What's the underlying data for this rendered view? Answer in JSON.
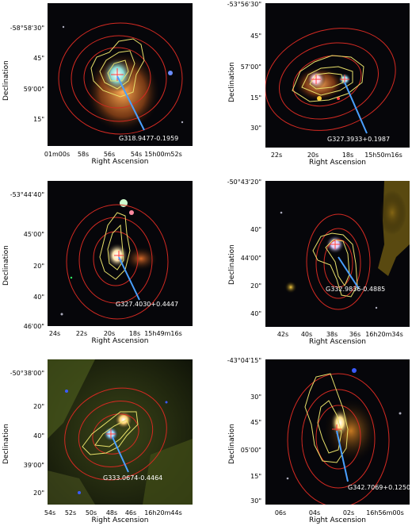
{
  "axis_labels": {
    "y": "Declination",
    "x": "Right Ascension"
  },
  "colors": {
    "contour_red": "#d42a22",
    "contour_yellow": "#e8e06a",
    "arrow": "#4aa0ff",
    "marker": "#ff3b3b"
  },
  "panels": [
    {
      "source": "G318.9477-0.1959",
      "yticks": [
        "-58°58'30\"",
        "45\"",
        "59'00\"",
        "15\""
      ],
      "xticks": [
        "01m00s",
        "58s",
        "56s",
        "54s",
        "15h00m52s"
      ]
    },
    {
      "source": "G327.3933+0.1987",
      "yticks": [
        "-53°56'30\"",
        "45\"",
        "57'00\"",
        "15\"",
        "30\""
      ],
      "xticks": [
        "22s",
        "20s",
        "18s",
        "15h50m16s"
      ]
    },
    {
      "source": "G327.4030+0.4447",
      "yticks": [
        "-53°44'40\"",
        "45'00\"",
        "20\"",
        "40\"",
        "46'00\""
      ],
      "xticks": [
        "24s",
        "22s",
        "20s",
        "18s",
        "15h49m16s"
      ]
    },
    {
      "source": "G332.9836-0.4885",
      "yticks": [
        "-50°43'20\"",
        "40\"",
        "44'00\"",
        "20\"",
        "40\""
      ],
      "xticks": [
        "42s",
        "40s",
        "38s",
        "36s",
        "16h20m34s"
      ]
    },
    {
      "source": "G333.0674-0.4464",
      "yticks": [
        "-50°38'00\"",
        "20\"",
        "40\"",
        "39'00\"",
        "20\""
      ],
      "xticks": [
        "54s",
        "52s",
        "50s",
        "48s",
        "46s",
        "16h20m44s"
      ]
    },
    {
      "source": "G342.7069+0.1250",
      "yticks": [
        "-43°04'15\"",
        "30\"",
        "45\"",
        "05'00\"",
        "15\"",
        "30\""
      ],
      "xticks": [
        "06s",
        "04s",
        "02s",
        "16h56m00s"
      ]
    }
  ]
}
